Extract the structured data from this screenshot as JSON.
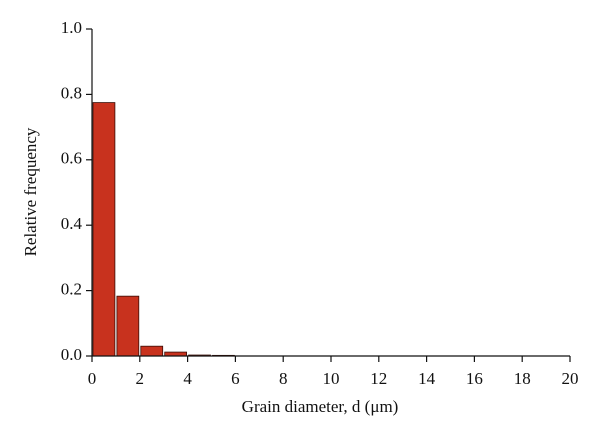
{
  "chart_data": {
    "type": "histogram",
    "xlabel": "Grain diameter, d (μm)",
    "ylabel": "Relative frequency",
    "bins": [
      0,
      1,
      2,
      3,
      4,
      5,
      6
    ],
    "values": [
      0.775,
      0.183,
      0.03,
      0.012,
      0.003,
      0.002
    ],
    "color": "#c8321e",
    "xlim": [
      0,
      20
    ],
    "xticks": [
      0,
      2,
      4,
      6,
      8,
      10,
      12,
      14,
      16,
      18,
      20
    ],
    "ylim": [
      0,
      1
    ],
    "yticks": [
      {
        "value": 0,
        "label": "0.0"
      },
      0.2,
      0.4,
      0.6,
      0.8,
      {
        "value": 1,
        "label": "1.0"
      }
    ]
  }
}
